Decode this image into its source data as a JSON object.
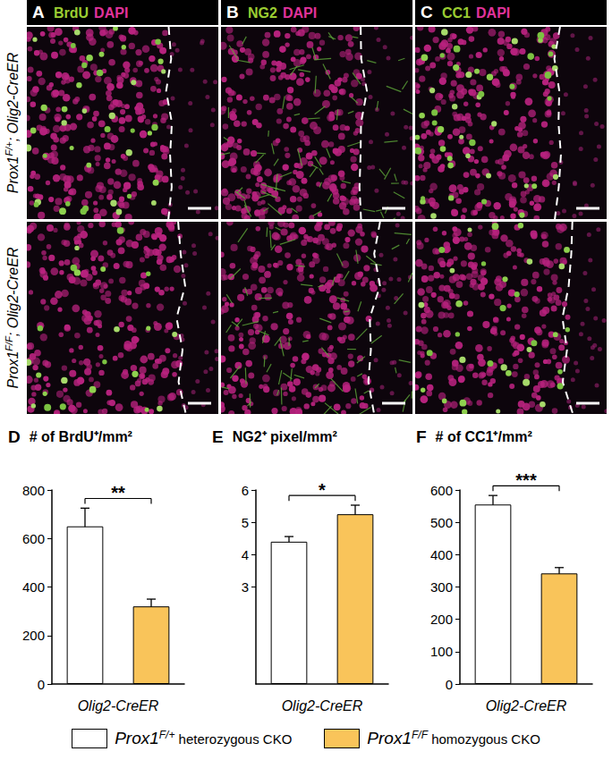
{
  "images": {
    "columns": [
      {
        "panel": "A",
        "stains": [
          "BrdU",
          "DAPI"
        ]
      },
      {
        "panel": "B",
        "stains": [
          "NG2",
          "DAPI"
        ]
      },
      {
        "panel": "C",
        "stains": [
          "CC1",
          "DAPI"
        ]
      }
    ],
    "rows": [
      {
        "gene": "Prox1",
        "allele": "F/+",
        "suffix": "; Olig2-CreER"
      },
      {
        "gene": "Prox1",
        "allele": "F/F",
        "suffix": "; Olig2-CreER"
      }
    ]
  },
  "chart_data": [
    {
      "type": "bar",
      "panel": "D",
      "title": "# of BrdU⁺/mm²",
      "xlabel": "Olig2-CreER",
      "categories": [
        null,
        null
      ],
      "values": [
        650,
        320
      ],
      "errors": [
        75,
        30
      ],
      "colors": [
        "#ffffff",
        "#f9c45a"
      ],
      "ylim": [
        0,
        800
      ],
      "yticks": [
        0,
        200,
        400,
        600,
        800
      ],
      "significance": "**",
      "grid": false
    },
    {
      "type": "bar",
      "panel": "E",
      "title": "NG2⁺ pixel/mm²",
      "xlabel": "Olig2-CreER",
      "categories": [
        null,
        null
      ],
      "values": [
        4.4,
        5.25
      ],
      "errors": [
        0.16,
        0.28
      ],
      "colors": [
        "#ffffff",
        "#f9c45a"
      ],
      "ylim": [
        0,
        6
      ],
      "yticks": [
        3,
        4,
        5,
        6
      ],
      "significance": "*",
      "grid": false
    },
    {
      "type": "bar",
      "panel": "F",
      "title": "# of CC1⁺/mm²",
      "xlabel": "Olig2-CreER",
      "categories": [
        null,
        null
      ],
      "values": [
        555,
        342
      ],
      "errors": [
        28,
        18
      ],
      "colors": [
        "#ffffff",
        "#f9c45a"
      ],
      "ylim": [
        0,
        600
      ],
      "yticks": [
        0,
        100,
        200,
        300,
        400,
        500,
        600
      ],
      "significance": "***",
      "grid": false
    }
  ],
  "color_key": [
    {
      "gene": "Prox1",
      "allele": "F/+",
      "desc": "heterozygous CKO",
      "color": "#ffffff"
    },
    {
      "gene": "Prox1",
      "allele": "F/F",
      "desc": "homozygous CKO",
      "color": "#f9c45a"
    }
  ]
}
